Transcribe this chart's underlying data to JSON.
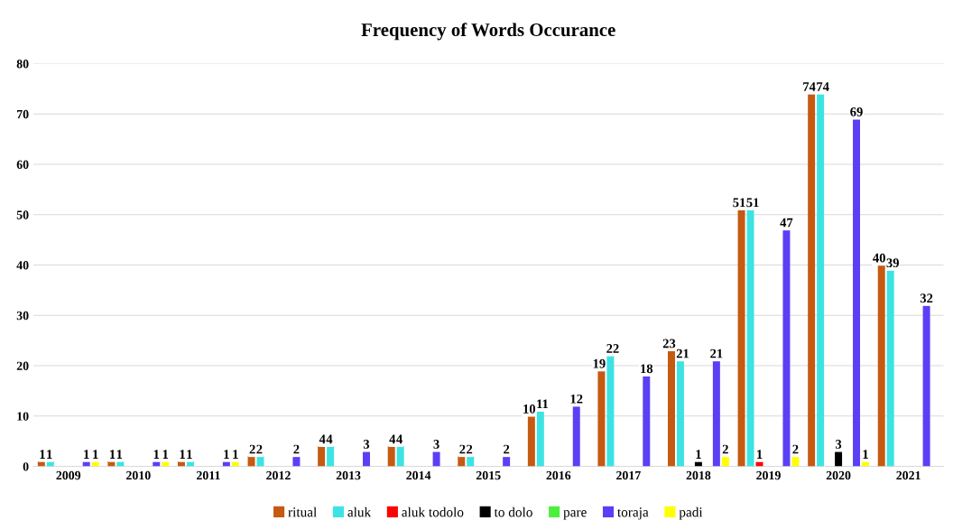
{
  "chart_data": {
    "type": "bar",
    "title": "Frequency of Words Occurance",
    "categories": [
      "2009",
      "2010",
      "2011",
      "2012",
      "2013",
      "2014",
      "2015",
      "2016",
      "2017",
      "2018",
      "2019",
      "2020",
      "2021"
    ],
    "series": [
      {
        "name": "ritual",
        "color": "#c55a11",
        "values": [
          1,
          1,
          1,
          2,
          4,
          4,
          2,
          10,
          19,
          23,
          51,
          74,
          40
        ]
      },
      {
        "name": "aluk",
        "color": "#3de3e3",
        "values": [
          1,
          1,
          1,
          2,
          4,
          4,
          2,
          11,
          22,
          21,
          51,
          74,
          39
        ]
      },
      {
        "name": "aluk todolo",
        "color": "#ff0000",
        "values": [
          null,
          null,
          null,
          null,
          null,
          null,
          null,
          null,
          null,
          null,
          1,
          null,
          null
        ]
      },
      {
        "name": "to dolo",
        "color": "#000000",
        "values": [
          null,
          null,
          null,
          null,
          null,
          null,
          null,
          null,
          null,
          1,
          null,
          3,
          null
        ]
      },
      {
        "name": "pare",
        "color": "#4cf03c",
        "values": [
          null,
          null,
          null,
          null,
          null,
          null,
          null,
          null,
          null,
          null,
          null,
          null,
          null
        ]
      },
      {
        "name": "toraja",
        "color": "#5b3ff5",
        "values": [
          1,
          1,
          1,
          2,
          3,
          3,
          2,
          12,
          18,
          21,
          47,
          69,
          32
        ]
      },
      {
        "name": "padi",
        "color": "#ffff00",
        "values": [
          1,
          1,
          1,
          null,
          null,
          null,
          null,
          null,
          null,
          2,
          2,
          1,
          null
        ]
      }
    ],
    "ylim": [
      0,
      80
    ],
    "yticks": [
      0,
      10,
      20,
      30,
      40,
      50,
      60,
      70,
      80
    ],
    "grid": "y",
    "legend": "bottom",
    "data_labels": true
  }
}
